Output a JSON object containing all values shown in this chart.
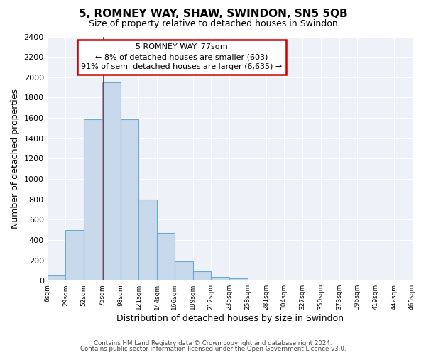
{
  "title": "5, ROMNEY WAY, SHAW, SWINDON, SN5 5QB",
  "subtitle": "Size of property relative to detached houses in Swindon",
  "xlabel": "Distribution of detached houses by size in Swindon",
  "ylabel": "Number of detached properties",
  "bar_color": "#c9d9ec",
  "bar_edge_color": "#6aaad4",
  "background_color": "#ffffff",
  "plot_bg_color": "#eef2f8",
  "grid_color": "#ffffff",
  "bin_edges": [
    6,
    29,
    52,
    75,
    98,
    121,
    144,
    166,
    189,
    212,
    235,
    258,
    281,
    304,
    327,
    350,
    373,
    396,
    419,
    442,
    465
  ],
  "bar_heights": [
    50,
    500,
    1590,
    1950,
    1590,
    800,
    470,
    190,
    90,
    35,
    20,
    0,
    0,
    0,
    0,
    0,
    0,
    0,
    0,
    0
  ],
  "tick_labels": [
    "6sqm",
    "29sqm",
    "52sqm",
    "75sqm",
    "98sqm",
    "121sqm",
    "144sqm",
    "166sqm",
    "189sqm",
    "212sqm",
    "235sqm",
    "258sqm",
    "281sqm",
    "304sqm",
    "327sqm",
    "350sqm",
    "373sqm",
    "396sqm",
    "419sqm",
    "442sqm",
    "465sqm"
  ],
  "ylim": [
    0,
    2400
  ],
  "yticks": [
    0,
    200,
    400,
    600,
    800,
    1000,
    1200,
    1400,
    1600,
    1800,
    2000,
    2200,
    2400
  ],
  "property_size": 77,
  "vline_color": "#8b1a1a",
  "annotation_line1": "5 ROMNEY WAY: 77sqm",
  "annotation_line2": "← 8% of detached houses are smaller (603)",
  "annotation_line3": "91% of semi-detached houses are larger (6,635) →",
  "annotation_box_color": "white",
  "annotation_box_edge_color": "#cc0000",
  "footer_line1": "Contains HM Land Registry data © Crown copyright and database right 2024.",
  "footer_line2": "Contains public sector information licensed under the Open Government Licence v3.0."
}
